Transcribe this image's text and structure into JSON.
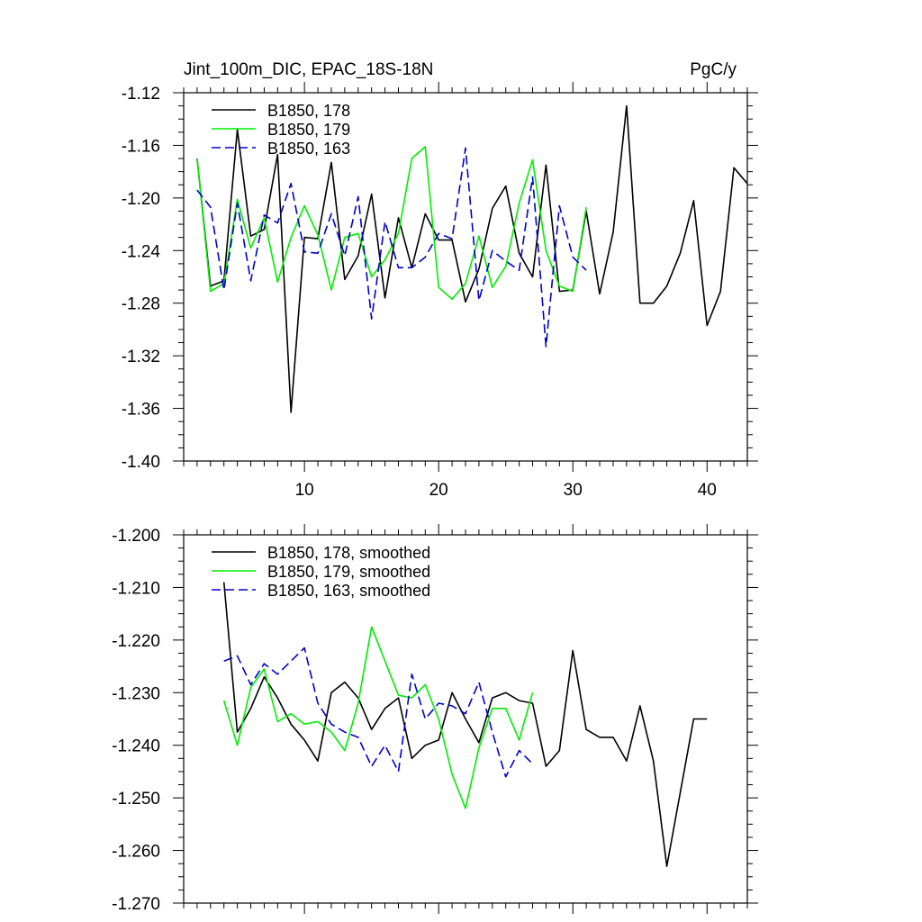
{
  "chart_data": [
    {
      "type": "line",
      "title_left": "Jint_100m_DIC, EPAC_18S-18N",
      "title_right": "PgC/y",
      "xlim": [
        1,
        43
      ],
      "ylim": [
        -1.4,
        -1.12
      ],
      "x_ticks": [
        10,
        20,
        30,
        40
      ],
      "x_tick_labels": [
        "10",
        "20",
        "30",
        "40"
      ],
      "y_ticks": [
        -1.12,
        -1.16,
        -1.2,
        -1.24,
        -1.28,
        -1.32,
        -1.36,
        -1.4
      ],
      "y_tick_labels": [
        "-1.12",
        "-1.16",
        "-1.20",
        "-1.24",
        "-1.28",
        "-1.32",
        "-1.36",
        "-1.40"
      ],
      "legend_position": "top-left",
      "series": [
        {
          "name": "B1850, 178",
          "color": "#000000",
          "dash": "solid",
          "x": [
            2,
            3,
            4,
            5,
            6,
            7,
            8,
            9,
            10,
            11,
            12,
            13,
            14,
            15,
            16,
            17,
            18,
            19,
            20,
            21,
            22,
            23,
            24,
            25,
            26,
            27,
            28,
            29,
            30,
            31,
            32,
            33,
            34,
            35,
            36,
            37,
            38,
            39,
            40,
            41,
            42,
            43
          ],
          "y": [
            -1.17,
            -1.267,
            -1.263,
            -1.148,
            -1.229,
            -1.224,
            -1.167,
            -1.363,
            -1.23,
            -1.231,
            -1.173,
            -1.262,
            -1.244,
            -1.197,
            -1.276,
            -1.215,
            -1.253,
            -1.212,
            -1.232,
            -1.232,
            -1.279,
            -1.254,
            -1.208,
            -1.191,
            -1.242,
            -1.26,
            -1.175,
            -1.271,
            -1.27,
            -1.21,
            -1.273,
            -1.226,
            -1.13,
            -1.28,
            -1.28,
            -1.267,
            -1.242,
            -1.202,
            -1.297,
            -1.271,
            -1.177,
            -1.189
          ]
        },
        {
          "name": "B1850, 179",
          "color": "#00ee00",
          "dash": "solid",
          "x": [
            2,
            3,
            4,
            5,
            6,
            7,
            8,
            9,
            10,
            11,
            12,
            13,
            14,
            15,
            16,
            17,
            18,
            19,
            20,
            21,
            22,
            23,
            24,
            25,
            26,
            27,
            28,
            29,
            30,
            31
          ],
          "y": [
            -1.17,
            -1.271,
            -1.265,
            -1.201,
            -1.238,
            -1.215,
            -1.264,
            -1.23,
            -1.206,
            -1.228,
            -1.27,
            -1.23,
            -1.227,
            -1.26,
            -1.247,
            -1.227,
            -1.17,
            -1.161,
            -1.268,
            -1.277,
            -1.265,
            -1.229,
            -1.268,
            -1.252,
            -1.204,
            -1.171,
            -1.24,
            -1.267,
            -1.271,
            -1.207
          ]
        },
        {
          "name": "B1850, 163",
          "color": "#0000cc",
          "dash": "dashed",
          "x": [
            2,
            3,
            4,
            5,
            6,
            7,
            8,
            9,
            10,
            11,
            12,
            13,
            14,
            15,
            16,
            17,
            18,
            19,
            20,
            21,
            22,
            23,
            24,
            25,
            26,
            27,
            28,
            29,
            30,
            31
          ],
          "y": [
            -1.194,
            -1.207,
            -1.27,
            -1.204,
            -1.263,
            -1.213,
            -1.219,
            -1.189,
            -1.241,
            -1.242,
            -1.212,
            -1.244,
            -1.199,
            -1.292,
            -1.218,
            -1.253,
            -1.253,
            -1.245,
            -1.227,
            -1.231,
            -1.162,
            -1.278,
            -1.24,
            -1.248,
            -1.255,
            -1.184,
            -1.313,
            -1.206,
            -1.245,
            -1.255
          ]
        }
      ]
    },
    {
      "type": "line",
      "xlim": [
        1,
        43
      ],
      "ylim": [
        -1.27,
        -1.2
      ],
      "x_ticks": [
        10,
        20,
        30,
        40
      ],
      "y_ticks": [
        -1.2,
        -1.21,
        -1.22,
        -1.23,
        -1.24,
        -1.25,
        -1.26,
        -1.27
      ],
      "y_tick_labels": [
        "-1.200",
        "-1.210",
        "-1.220",
        "-1.230",
        "-1.240",
        "-1.250",
        "-1.260",
        "-1.270"
      ],
      "legend_position": "top-left",
      "series": [
        {
          "name": "B1850, 178, smoothed",
          "color": "#000000",
          "dash": "solid",
          "x": [
            4,
            5,
            6,
            7,
            8,
            9,
            10,
            11,
            12,
            13,
            14,
            15,
            16,
            17,
            18,
            19,
            20,
            21,
            22,
            23,
            24,
            25,
            26,
            27,
            28,
            29,
            30,
            31,
            32,
            33,
            34,
            35,
            36,
            37,
            38,
            39,
            40
          ],
          "y": [
            -1.209,
            -1.2375,
            -1.233,
            -1.227,
            -1.231,
            -1.236,
            -1.239,
            -1.243,
            -1.23,
            -1.228,
            -1.231,
            -1.237,
            -1.233,
            -1.231,
            -1.2425,
            -1.24,
            -1.239,
            -1.23,
            -1.235,
            -1.2395,
            -1.231,
            -1.23,
            -1.2315,
            -1.232,
            -1.244,
            -1.241,
            -1.222,
            -1.237,
            -1.2385,
            -1.2385,
            -1.243,
            -1.2325,
            -1.243,
            -1.263,
            -1.249,
            -1.235,
            -1.235
          ]
        },
        {
          "name": "B1850, 179, smoothed",
          "color": "#00ee00",
          "dash": "solid",
          "x": [
            4,
            5,
            6,
            7,
            8,
            9,
            10,
            11,
            12,
            13,
            14,
            15,
            16,
            17,
            18,
            19,
            20,
            21,
            22,
            23,
            24,
            25,
            26,
            27
          ],
          "y": [
            -1.2315,
            -1.24,
            -1.229,
            -1.2255,
            -1.2355,
            -1.234,
            -1.236,
            -1.2355,
            -1.2375,
            -1.241,
            -1.232,
            -1.2175,
            -1.224,
            -1.2305,
            -1.231,
            -1.2285,
            -1.235,
            -1.2455,
            -1.252,
            -1.2405,
            -1.233,
            -1.233,
            -1.239,
            -1.23
          ]
        },
        {
          "name": "B1850, 163, smoothed",
          "color": "#0000cc",
          "dash": "dashed",
          "x": [
            4,
            5,
            6,
            7,
            8,
            9,
            10,
            11,
            12,
            13,
            14,
            15,
            16,
            17,
            18,
            19,
            20,
            21,
            22,
            23,
            24,
            25,
            26,
            27
          ],
          "y": [
            -1.224,
            -1.223,
            -1.2285,
            -1.2245,
            -1.2265,
            -1.224,
            -1.2215,
            -1.232,
            -1.236,
            -1.2375,
            -1.2385,
            -1.244,
            -1.24,
            -1.245,
            -1.2265,
            -1.235,
            -1.232,
            -1.2325,
            -1.234,
            -1.228,
            -1.2375,
            -1.246,
            -1.241,
            -1.2435
          ]
        }
      ]
    }
  ]
}
